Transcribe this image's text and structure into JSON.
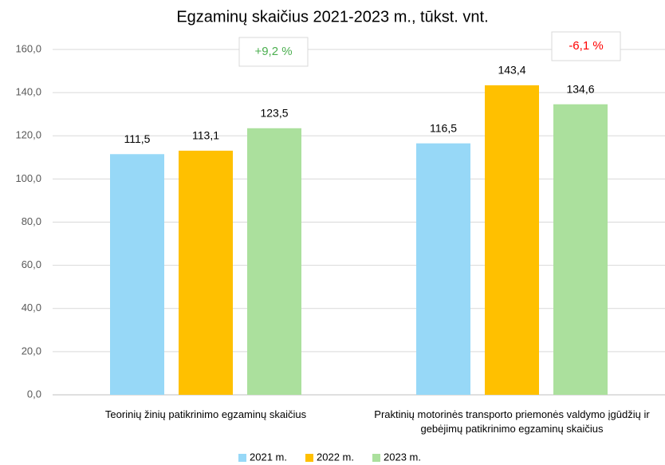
{
  "chart_data": {
    "type": "bar",
    "title": "Egzaminų skaičius 2021-2023 m., tūkst. vnt.",
    "categories": [
      "Teorinių žinių patikrinimo egzaminų skaičius",
      "Praktinių motorinės transporto priemonės valdymo įgūdžių ir gebėjimų patikrinimo egzaminų skaičius"
    ],
    "series": [
      {
        "name": "2021 m.",
        "color": "#97d8f7",
        "values": [
          111.5,
          116.5
        ],
        "value_labels": [
          "111,5",
          "116,5"
        ]
      },
      {
        "name": "2022 m.",
        "color": "#ffc000",
        "values": [
          113.1,
          143.4
        ],
        "value_labels": [
          "113,1",
          "143,4"
        ]
      },
      {
        "name": "2023 m.",
        "color": "#abe09d",
        "values": [
          123.5,
          134.6
        ],
        "value_labels": [
          "123,5",
          "134,6"
        ]
      }
    ],
    "annotations": [
      {
        "text": "+9,2 %",
        "color": "#4caf50"
      },
      {
        "text": "-6,1 %",
        "color": "#ff0000"
      }
    ],
    "ylim": [
      0,
      160
    ],
    "yticks": [
      {
        "value": 0,
        "label": "0,0"
      },
      {
        "value": 20,
        "label": "20,0"
      },
      {
        "value": 40,
        "label": "40,0"
      },
      {
        "value": 60,
        "label": "60,0"
      },
      {
        "value": 80,
        "label": "80,0"
      },
      {
        "value": 100,
        "label": "100,0"
      },
      {
        "value": 120,
        "label": "120,0"
      },
      {
        "value": 140,
        "label": "140,0"
      },
      {
        "value": 160,
        "label": "160,0"
      }
    ],
    "grid": true,
    "legend": "bottom"
  }
}
